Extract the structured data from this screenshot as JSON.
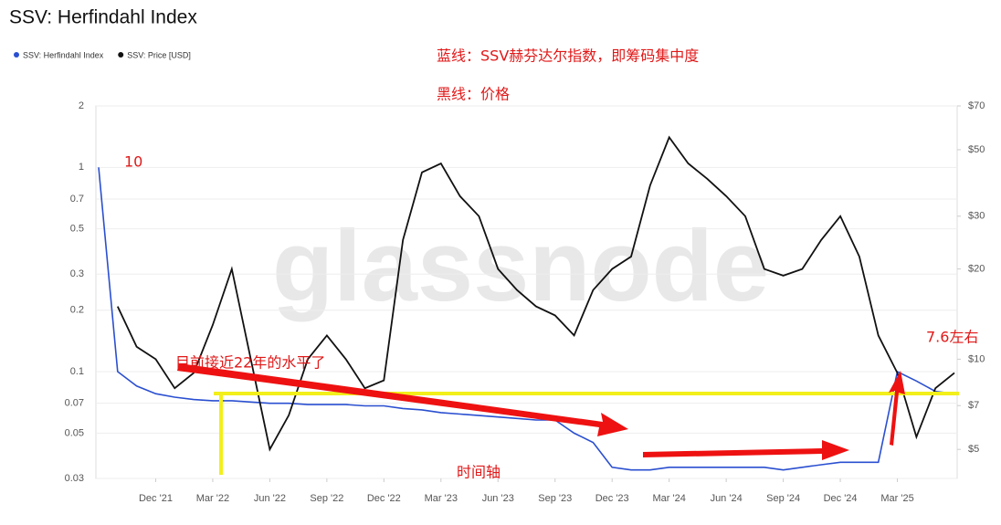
{
  "chart_data": {
    "type": "line",
    "title": "SSV: Herfindahl Index",
    "watermark": "glassnode",
    "annotations": [
      "蓝线：SSV赫芬达尔指数，即筹码集中度",
      "黑线：价格",
      "10",
      "7.6左右",
      "目前接近22年的水平了",
      "时间轴"
    ],
    "log_scale": true,
    "x": [
      "2021-09",
      "2021-10",
      "2021-11",
      "2021-12",
      "2022-01",
      "2022-02",
      "2022-03",
      "2022-04",
      "2022-05",
      "2022-06",
      "2022-07",
      "2022-08",
      "2022-09",
      "2022-10",
      "2022-11",
      "2022-12",
      "2023-01",
      "2023-02",
      "2023-03",
      "2023-04",
      "2023-05",
      "2023-06",
      "2023-07",
      "2023-08",
      "2023-09",
      "2023-10",
      "2023-11",
      "2023-12",
      "2024-01",
      "2024-02",
      "2024-03",
      "2024-04",
      "2024-05",
      "2024-06",
      "2024-07",
      "2024-08",
      "2024-09",
      "2024-10",
      "2024-11",
      "2024-12",
      "2025-01",
      "2025-02",
      "2025-03",
      "2025-04",
      "2025-05",
      "2025-06"
    ],
    "series": [
      {
        "name": "SSV: Herfindahl Index",
        "color": "#2a4fd0",
        "axis": "y",
        "values": [
          1.0,
          0.1,
          0.085,
          0.078,
          0.075,
          0.073,
          0.072,
          0.072,
          0.071,
          0.07,
          0.07,
          0.069,
          0.069,
          0.069,
          0.068,
          0.068,
          0.066,
          0.065,
          0.063,
          0.062,
          0.061,
          0.06,
          0.059,
          0.058,
          0.058,
          0.05,
          0.045,
          0.034,
          0.033,
          0.033,
          0.034,
          0.034,
          0.034,
          0.034,
          0.034,
          0.034,
          0.033,
          0.034,
          0.035,
          0.036,
          0.036,
          0.036,
          0.1,
          0.09,
          0.08,
          0.078
        ]
      },
      {
        "name": "SSV: Price [USD]",
        "color": "#111111",
        "axis": "y2",
        "values": [
          null,
          15,
          11,
          10,
          8,
          9,
          13,
          20,
          10,
          5,
          6.5,
          10,
          12,
          10,
          8,
          8.5,
          25,
          42,
          45,
          35,
          30,
          20,
          17,
          15,
          14,
          12,
          17,
          20,
          22,
          38,
          55,
          45,
          40,
          35,
          30,
          20,
          19,
          20,
          25,
          30,
          22,
          12,
          9,
          5.5,
          8,
          9
        ]
      }
    ],
    "xticks": [
      {
        "value": "2021-12",
        "label": "Dec '21"
      },
      {
        "value": "2022-03",
        "label": "Mar '22"
      },
      {
        "value": "2022-06",
        "label": "Jun '22"
      },
      {
        "value": "2022-09",
        "label": "Sep '22"
      },
      {
        "value": "2022-12",
        "label": "Dec '22"
      },
      {
        "value": "2023-03",
        "label": "Mar '23"
      },
      {
        "value": "2023-06",
        "label": "Jun '23"
      },
      {
        "value": "2023-09",
        "label": "Sep '23"
      },
      {
        "value": "2023-12",
        "label": "Dec '23"
      },
      {
        "value": "2024-03",
        "label": "Mar '24"
      },
      {
        "value": "2024-06",
        "label": "Jun '24"
      },
      {
        "value": "2024-09",
        "label": "Sep '24"
      },
      {
        "value": "2024-12",
        "label": "Dec '24"
      },
      {
        "value": "2025-03",
        "label": "Mar '25"
      }
    ],
    "ylim": [
      0.03,
      2
    ],
    "yticks": [
      2,
      1,
      0.7,
      0.5,
      0.3,
      0.2,
      0.1,
      0.07,
      0.05,
      0.03
    ],
    "y2lim": [
      4,
      70
    ],
    "y2ticks": [
      {
        "value": 70,
        "label": "$70"
      },
      {
        "value": 50,
        "label": "$50"
      },
      {
        "value": 30,
        "label": "$30"
      },
      {
        "value": 20,
        "label": "$20"
      },
      {
        "value": 10,
        "label": "$10"
      },
      {
        "value": 7,
        "label": "$7"
      },
      {
        "value": 5,
        "label": "$5"
      }
    ],
    "grid": true
  }
}
